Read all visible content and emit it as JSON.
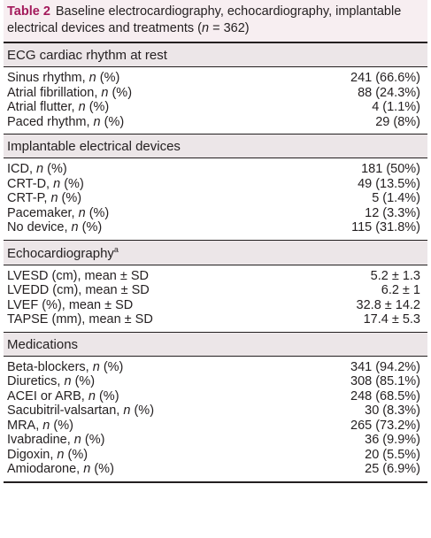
{
  "title": {
    "label": "Table 2",
    "text": "Baseline electrocardiography, echocardiography, implantable electrical devices and treatments (n = 362)"
  },
  "sections": [
    {
      "heading": "ECG cardiac rhythm at rest",
      "rows": [
        [
          "Sinus rhythm, n (%)",
          "241 (66.6%)"
        ],
        [
          "Atrial fibrillation, n (%)",
          "88 (24.3%)"
        ],
        [
          "Atrial flutter, n (%)",
          "4 (1.1%)"
        ],
        [
          "Paced rhythm, n (%)",
          "29 (8%)"
        ]
      ]
    },
    {
      "heading": "Implantable electrical devices",
      "rows": [
        [
          "ICD, n (%)",
          "181 (50%)"
        ],
        [
          "CRT-D, n (%)",
          "49 (13.5%)"
        ],
        [
          "CRT-P, n (%)",
          "5 (1.4%)"
        ],
        [
          "Pacemaker, n (%)",
          "12 (3.3%)"
        ],
        [
          "No device, n (%)",
          "115 (31.8%)"
        ]
      ]
    },
    {
      "heading": "Echocardiography",
      "note": "a",
      "rows": [
        [
          "LVESD (cm), mean ± SD",
          "5.2 ± 1.3"
        ],
        [
          "LVEDD (cm), mean ± SD",
          "6.2 ± 1"
        ],
        [
          "LVEF (%), mean ± SD",
          "32.8 ± 14.2"
        ],
        [
          "TAPSE (mm), mean ± SD",
          "17.4 ± 5.3"
        ]
      ]
    },
    {
      "heading": "Medications",
      "rows": [
        [
          "Beta-blockers, n (%)",
          "341 (94.2%)"
        ],
        [
          "Diuretics, n (%)",
          "308 (85.1%)"
        ],
        [
          "ACEI or ARB, n (%)",
          "248 (68.5%)"
        ],
        [
          "Sacubitril-valsartan, n (%)",
          "30 (8.3%)"
        ],
        [
          "MRA, n (%)",
          "265 (73.2%)"
        ],
        [
          "Ivabradine, n (%)",
          "36 (9.9%)"
        ],
        [
          "Digoxin, n (%)",
          "20 (5.5%)"
        ],
        [
          "Amiodarone, n (%)",
          "25 (6.9%)"
        ]
      ]
    }
  ]
}
